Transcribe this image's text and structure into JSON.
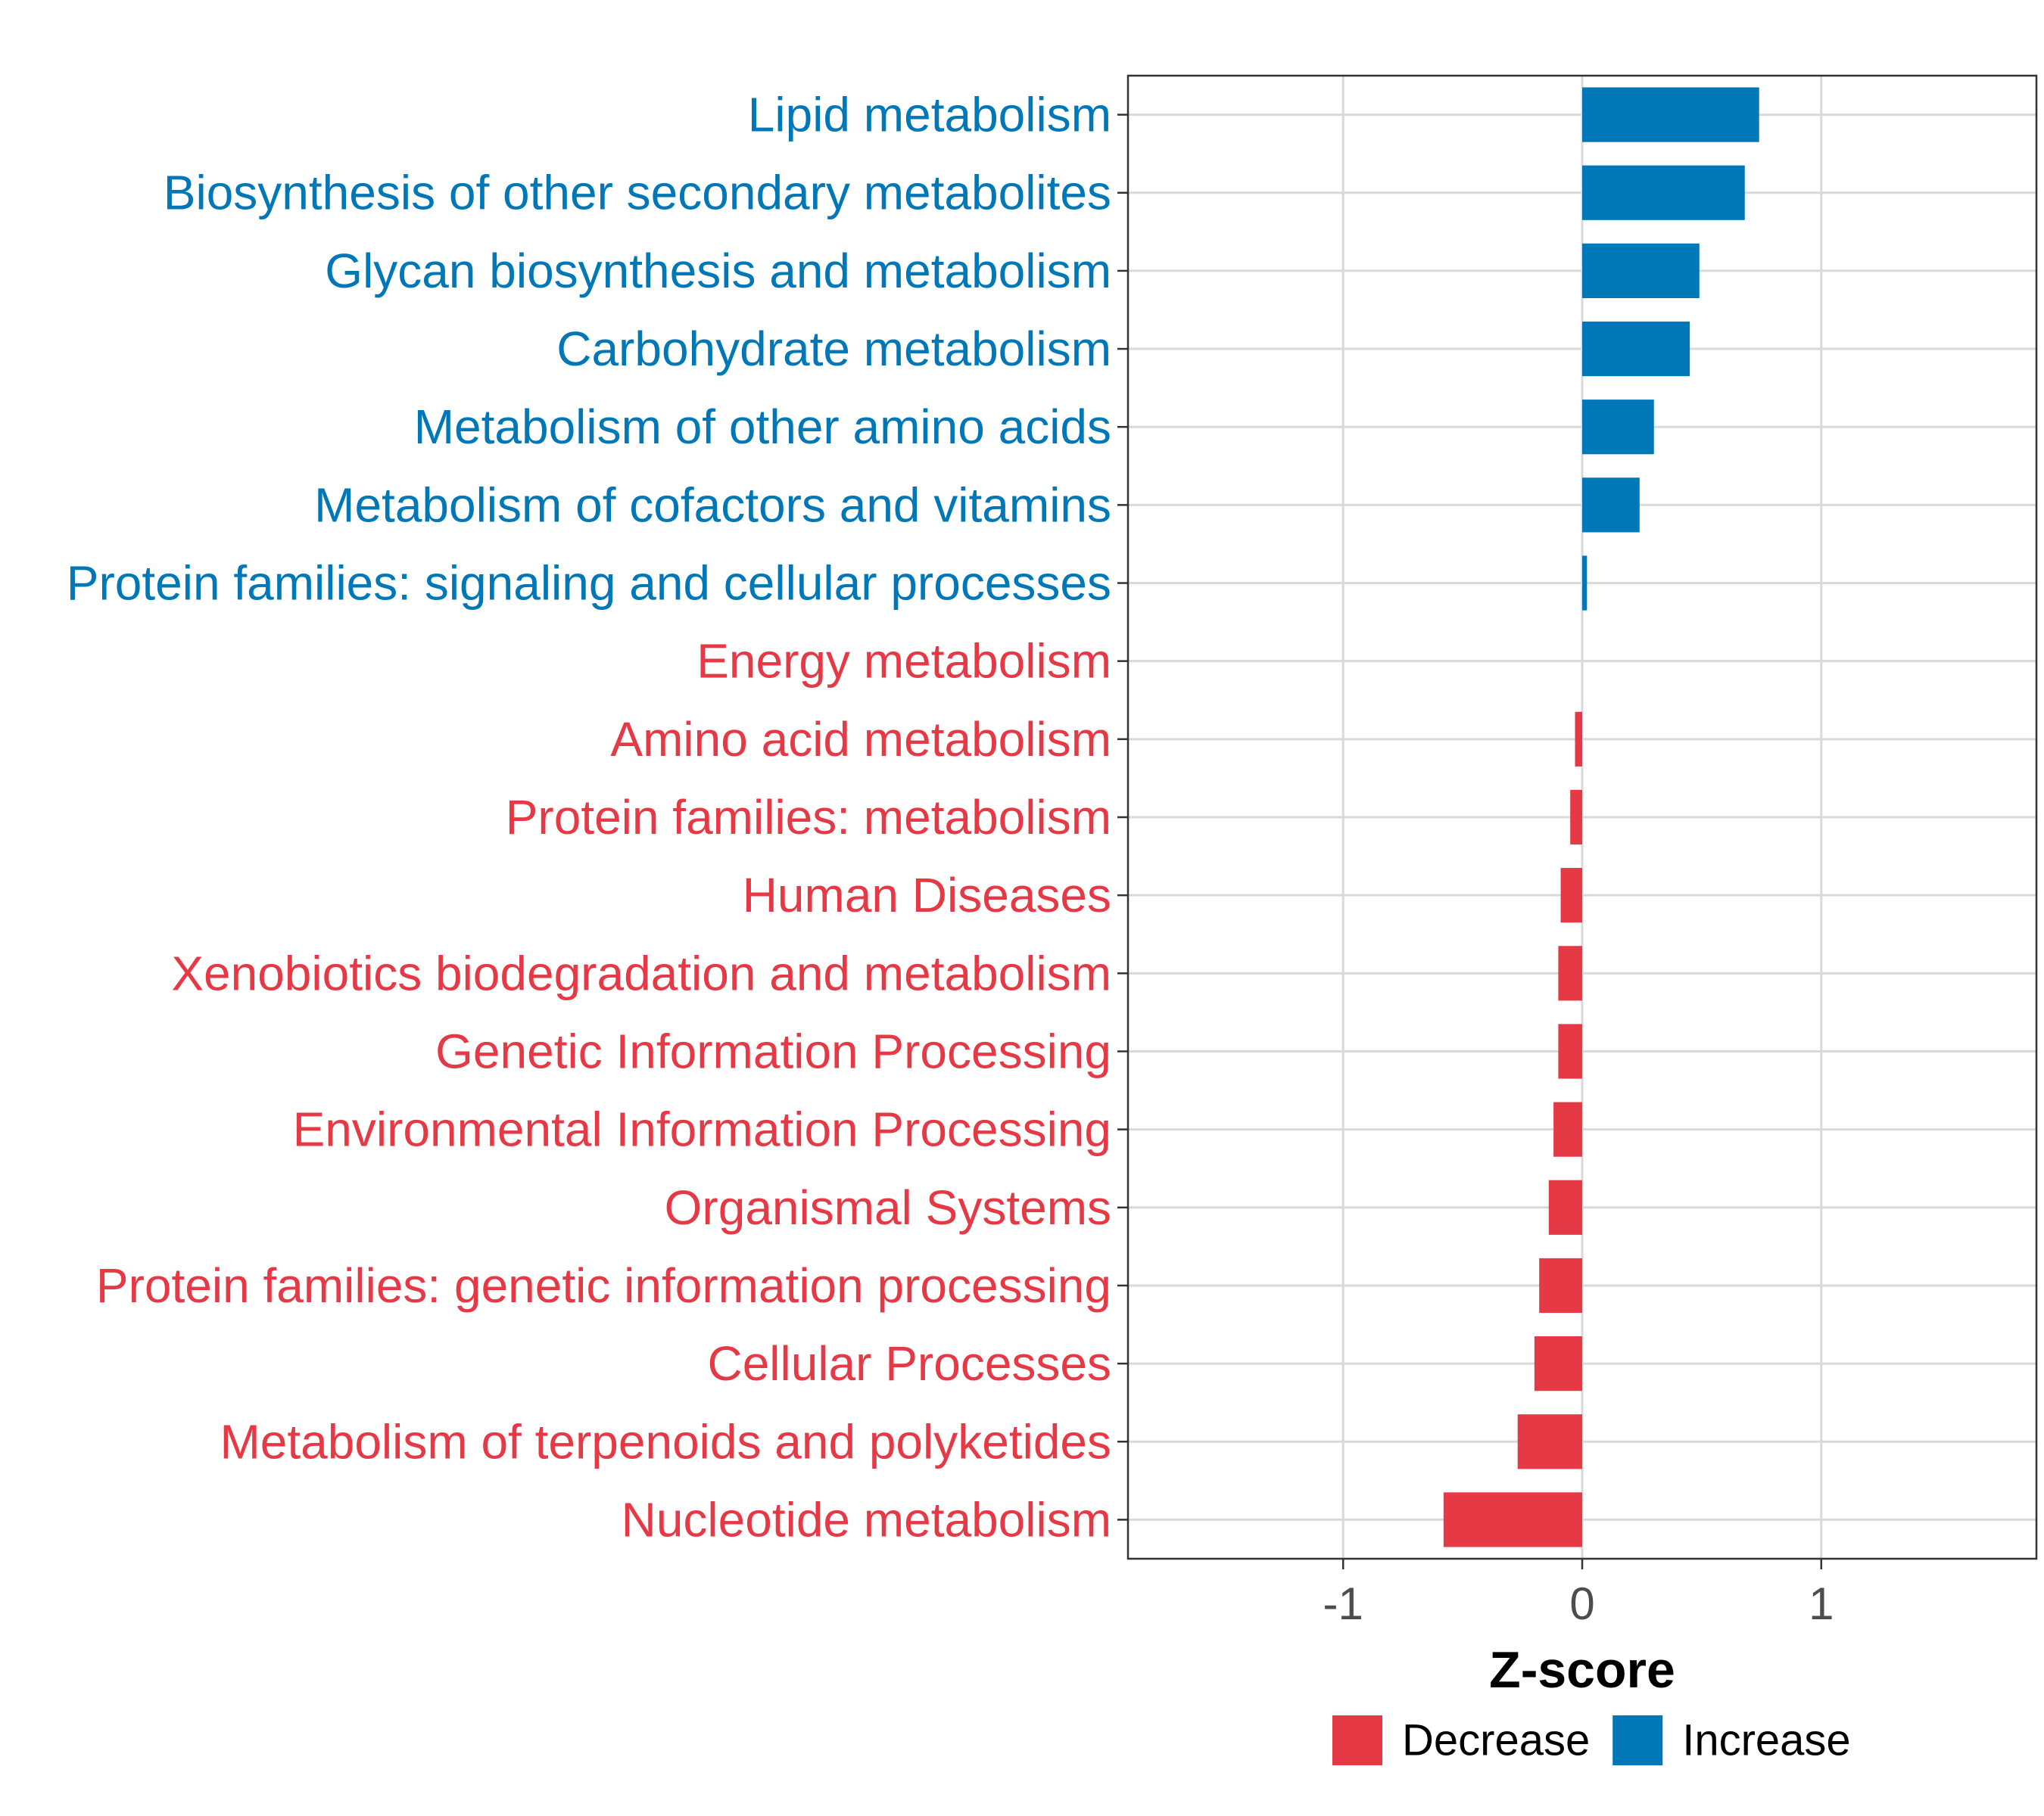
{
  "chart_data": {
    "type": "bar",
    "orientation": "horizontal",
    "title": "",
    "xlabel": "Z-score",
    "ylabel": "",
    "xlim": [
      -1.9,
      1.9
    ],
    "x_ticks": [
      {
        "value": -1,
        "label": "-1"
      },
      {
        "value": 0,
        "label": "0"
      },
      {
        "value": 1,
        "label": "1"
      }
    ],
    "grid": true,
    "legend_position": "bottom",
    "legend": [
      {
        "key": "decrease",
        "label": "Decrease",
        "color": "#E63946"
      },
      {
        "key": "increase",
        "label": "Increase",
        "color": "#0077B6"
      }
    ],
    "categories": [
      {
        "label": "Lipid metabolism",
        "value": 0.74,
        "group": "increase"
      },
      {
        "label": "Biosynthesis of other secondary metabolites",
        "value": 0.68,
        "group": "increase"
      },
      {
        "label": "Glycan biosynthesis and metabolism",
        "value": 0.49,
        "group": "increase"
      },
      {
        "label": "Carbohydrate metabolism",
        "value": 0.45,
        "group": "increase"
      },
      {
        "label": "Metabolism of other amino acids",
        "value": 0.3,
        "group": "increase"
      },
      {
        "label": "Metabolism of cofactors and vitamins",
        "value": 0.24,
        "group": "increase"
      },
      {
        "label": "Protein families: signaling and cellular processes",
        "value": 0.02,
        "group": "increase"
      },
      {
        "label": "Energy metabolism",
        "value": 0.0,
        "group": "decrease"
      },
      {
        "label": "Amino acid metabolism",
        "value": -0.03,
        "group": "decrease"
      },
      {
        "label": "Protein families: metabolism",
        "value": -0.05,
        "group": "decrease"
      },
      {
        "label": "Human Diseases",
        "value": -0.09,
        "group": "decrease"
      },
      {
        "label": "Xenobiotics biodegradation and metabolism",
        "value": -0.1,
        "group": "decrease"
      },
      {
        "label": "Genetic Information Processing",
        "value": -0.1,
        "group": "decrease"
      },
      {
        "label": "Environmental Information Processing",
        "value": -0.12,
        "group": "decrease"
      },
      {
        "label": "Organismal Systems",
        "value": -0.14,
        "group": "decrease"
      },
      {
        "label": "Protein families: genetic information processing",
        "value": -0.18,
        "group": "decrease"
      },
      {
        "label": "Cellular Processes",
        "value": -0.2,
        "group": "decrease"
      },
      {
        "label": "Metabolism of terpenoids and polyketides",
        "value": -0.27,
        "group": "decrease"
      },
      {
        "label": "Nucleotide metabolism",
        "value": -0.58,
        "group": "decrease"
      }
    ]
  }
}
